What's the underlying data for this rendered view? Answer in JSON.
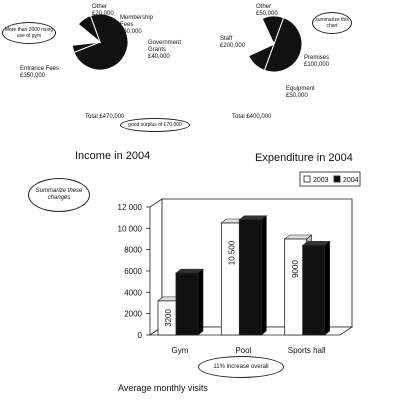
{
  "colors": {
    "dark": "#111111",
    "light": "#ffffff"
  },
  "chart_data": [
    {
      "type": "pie",
      "title": "Income in 2004",
      "slices": [
        {
          "label": "Entrance Fees",
          "value_text": "£350,000",
          "value": 350000
        },
        {
          "label": "Other",
          "value_text": "£20,000",
          "value": 20000
        },
        {
          "label": "Membership Fees",
          "value_text": "£60,000",
          "value": 60000
        },
        {
          "label": "Government Grants",
          "value_text": "£40,000",
          "value": 40000
        }
      ],
      "total": "Total £470,000",
      "annotations": [
        "More than 2000 rising use of gym",
        "good surplus of £70,000"
      ]
    },
    {
      "type": "pie",
      "title": "Expenditure in 2004",
      "slices": [
        {
          "label": "Staff",
          "value_text": "£200,000",
          "value": 200000
        },
        {
          "label": "Other",
          "value_text": "£50,000",
          "value": 50000
        },
        {
          "label": "Premises",
          "value_text": "£100,000",
          "value": 100000
        },
        {
          "label": "Equipment",
          "value_text": "£50,000",
          "value": 50000
        }
      ],
      "total": "Total £400,000",
      "annotations": [
        "summarize this chart"
      ]
    },
    {
      "type": "bar",
      "title": "Average monthly visits",
      "categories": [
        "Gym",
        "Pool",
        "Sports hall"
      ],
      "series": [
        {
          "name": "2003",
          "values": [
            3200,
            10500,
            9000
          ],
          "color": "#ffffff"
        },
        {
          "name": "2004",
          "values": [
            5800,
            10800,
            8400
          ],
          "color": "#111111"
        }
      ],
      "bar_labels": [
        "3200",
        "10 500",
        "9000"
      ],
      "yticks": [
        "0",
        "2000",
        "4000",
        "6000",
        "8000",
        "10 000",
        "12 000"
      ],
      "ylim": [
        0,
        12000
      ],
      "legend_position": "top-right",
      "annotations": [
        "Summarize these changes",
        "11% increase overall"
      ]
    }
  ]
}
